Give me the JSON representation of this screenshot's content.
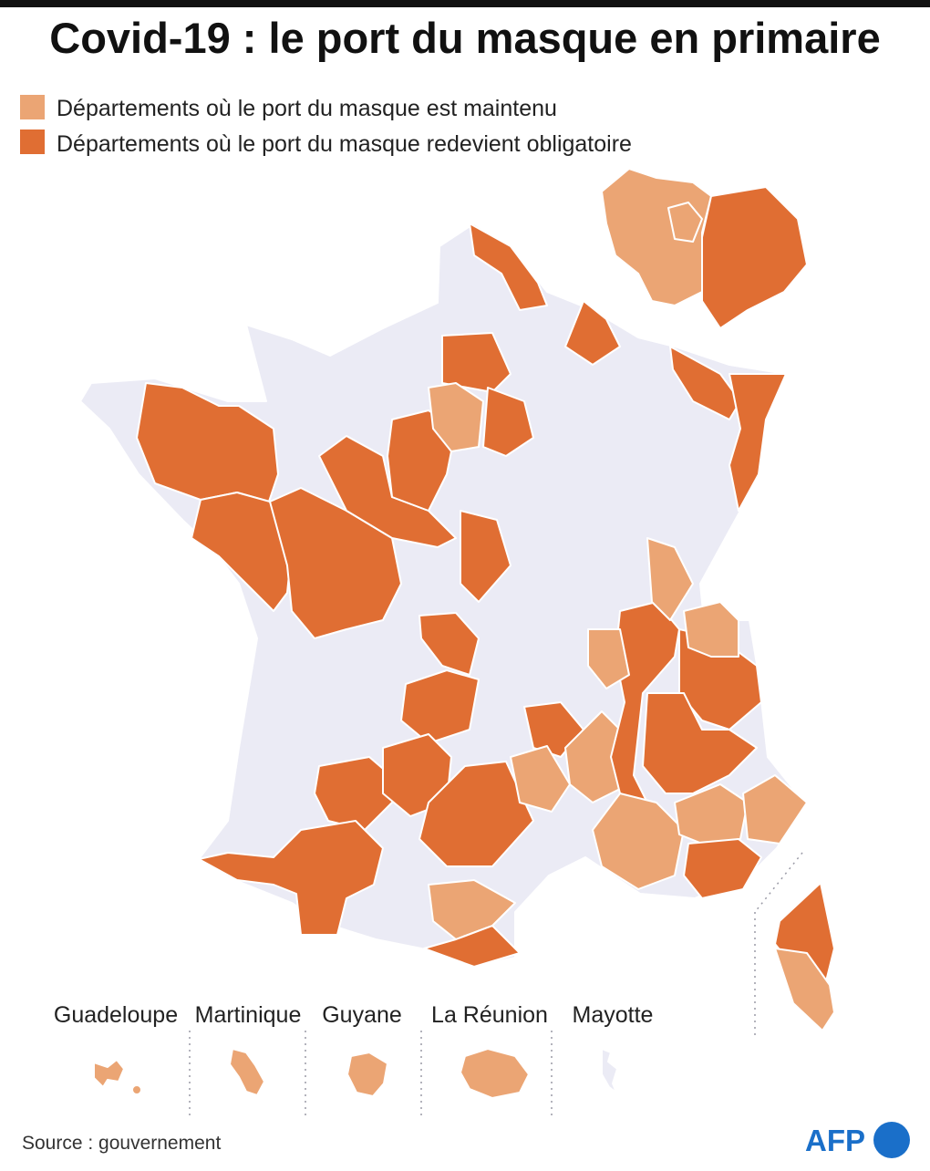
{
  "title": "Covid-19 : le port du masque en primaire",
  "legend": [
    {
      "label": "Départements où le port du masque est maintenu",
      "color": "#eba574"
    },
    {
      "label": "Départements où le port du masque redevient obligatoire",
      "color": "#e06e33"
    }
  ],
  "overseas": [
    "Guadeloupe",
    "Martinique",
    "Guyane",
    "La Réunion",
    "Mayotte"
  ],
  "source": "Source : gouvernement",
  "logo": "AFP"
}
